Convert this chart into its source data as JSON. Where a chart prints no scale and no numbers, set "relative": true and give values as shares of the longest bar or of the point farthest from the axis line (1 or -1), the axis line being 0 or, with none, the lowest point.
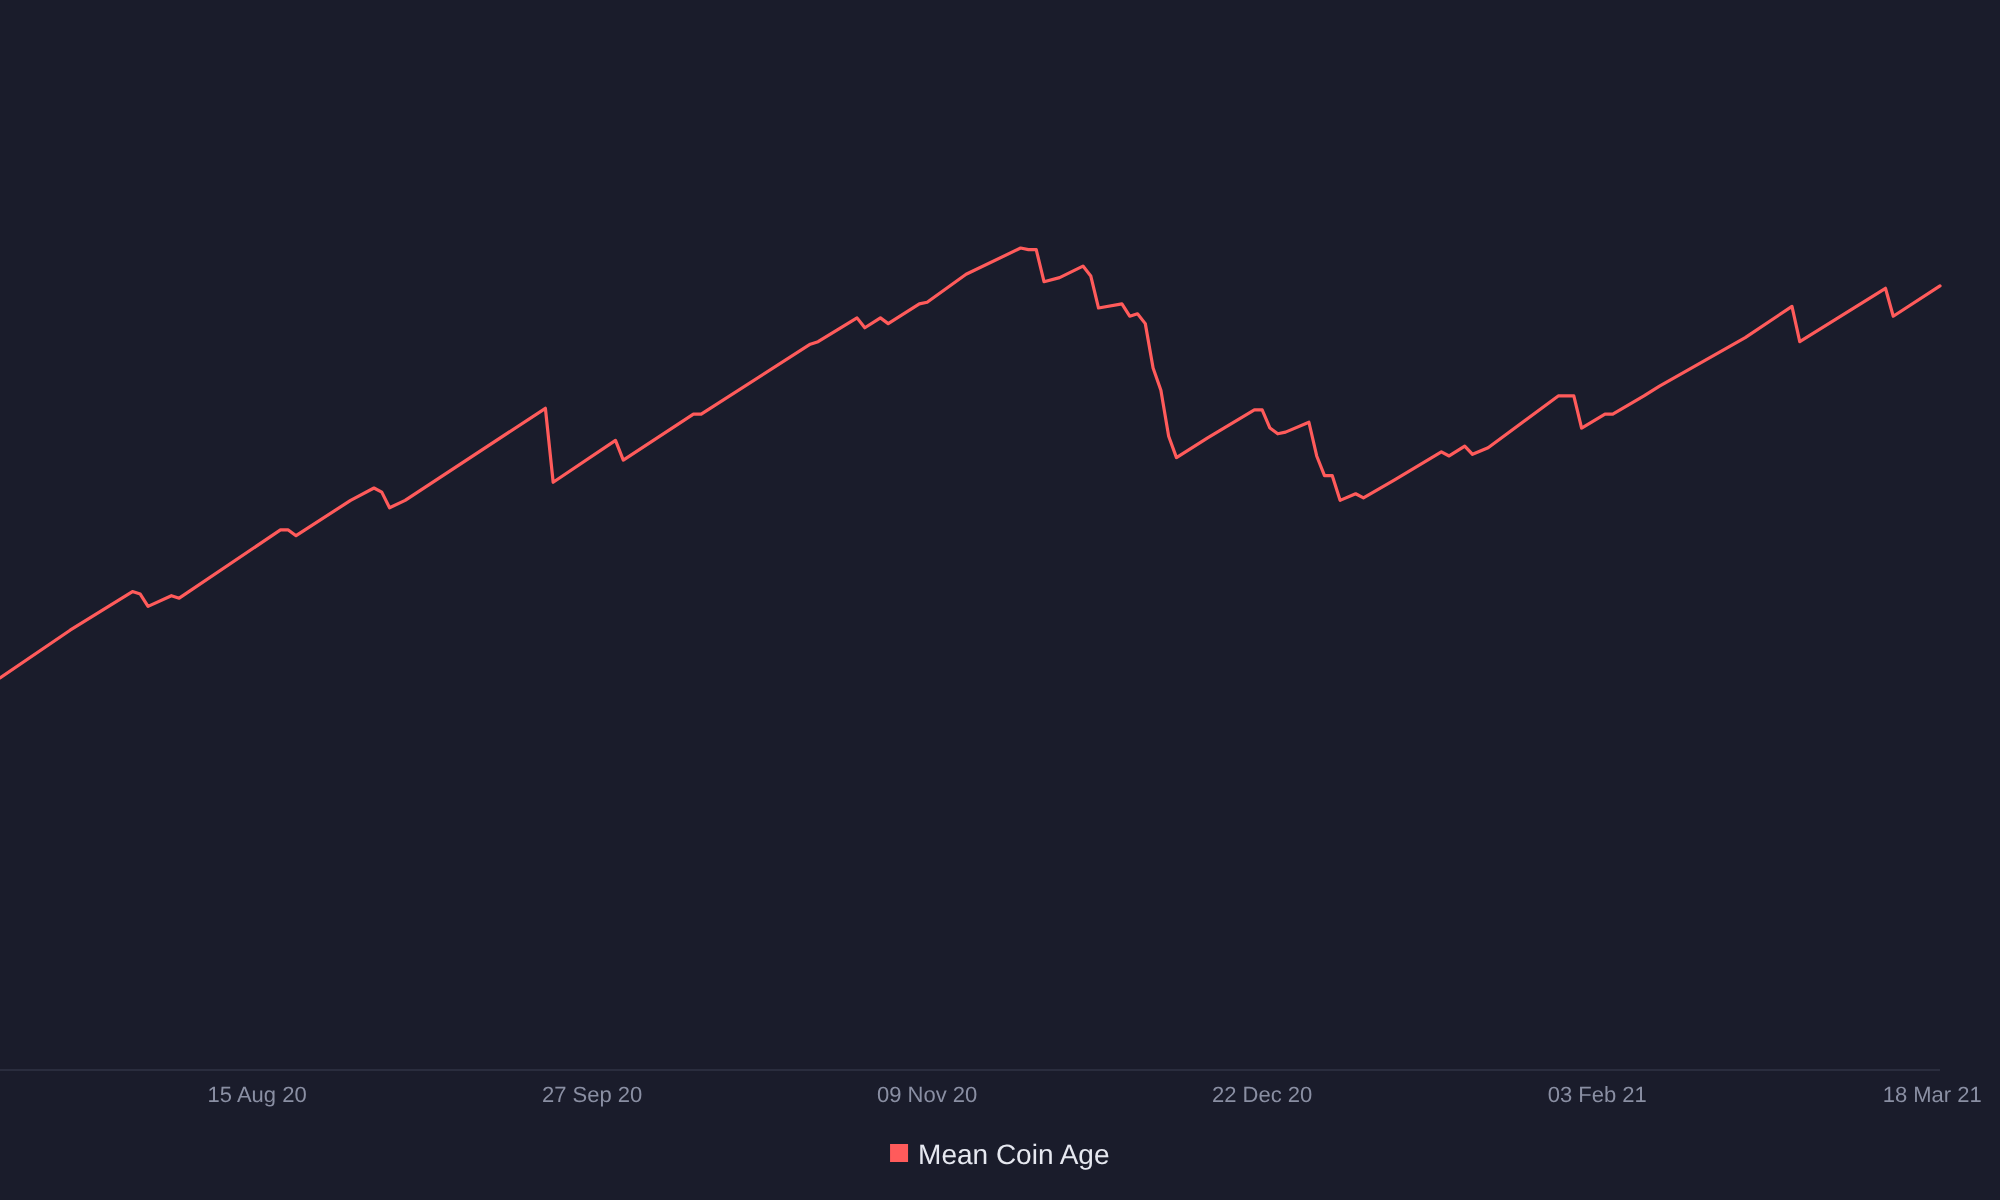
{
  "chart_data": {
    "type": "line",
    "relative": true,
    "legend": "bottom",
    "x": [
      "2020-07-13",
      "2020-07-22",
      "2020-07-30",
      "2020-07-31",
      "2020-08-01",
      "2020-08-04",
      "2020-08-05",
      "2020-08-18",
      "2020-08-19",
      "2020-08-20",
      "2020-08-27",
      "2020-08-30",
      "2020-08-31",
      "2020-09-01",
      "2020-09-03",
      "2020-09-21",
      "2020-09-22",
      "2020-09-30",
      "2020-10-01",
      "2020-10-10",
      "2020-10-11",
      "2020-10-25",
      "2020-10-26",
      "2020-10-31",
      "2020-11-01",
      "2020-11-03",
      "2020-11-04",
      "2020-11-08",
      "2020-11-09",
      "2020-11-14",
      "2020-11-21",
      "2020-11-22",
      "2020-11-23",
      "2020-11-24",
      "2020-11-26",
      "2020-11-29",
      "2020-11-30",
      "2020-12-01",
      "2020-12-04",
      "2020-12-05",
      "2020-12-06",
      "2020-12-07",
      "2020-12-08",
      "2020-12-09",
      "2020-12-10",
      "2020-12-11",
      "2020-12-15",
      "2020-12-21",
      "2020-12-22",
      "2020-12-23",
      "2020-12-24",
      "2020-12-25",
      "2020-12-28",
      "2020-12-29",
      "2020-12-30",
      "2020-12-31",
      "2021-01-01",
      "2021-01-03",
      "2021-01-04",
      "2021-01-08",
      "2021-01-14",
      "2021-01-15",
      "2021-01-17",
      "2021-01-18",
      "2021-01-20",
      "2021-01-29",
      "2021-01-31",
      "2021-02-01",
      "2021-02-04",
      "2021-02-05",
      "2021-02-09",
      "2021-02-11",
      "2021-02-22",
      "2021-02-28",
      "2021-03-01",
      "2021-03-12",
      "2021-03-13",
      "2021-03-19"
    ],
    "xlim": [
      "2020-07-13",
      "2021-03-19"
    ],
    "xticks": [
      {
        "value": "2020-08-15",
        "label": "15 Aug 20"
      },
      {
        "value": "2020-09-27",
        "label": "27 Sep 20"
      },
      {
        "value": "2020-11-09",
        "label": "09 Nov 20"
      },
      {
        "value": "2020-12-22",
        "label": "22 Dec 20"
      },
      {
        "value": "2021-02-03",
        "label": "03 Feb 21"
      },
      {
        "value": "2021-03-18",
        "label": "18 Mar 21"
      }
    ],
    "series": [
      {
        "name": "Mean Coin Age",
        "color": "#ff5b5b",
        "values": [
          0.477,
          0.535,
          0.582,
          0.579,
          0.564,
          0.577,
          0.574,
          0.657,
          0.657,
          0.65,
          0.693,
          0.708,
          0.703,
          0.684,
          0.693,
          0.805,
          0.715,
          0.766,
          0.742,
          0.798,
          0.798,
          0.883,
          0.886,
          0.915,
          0.903,
          0.915,
          0.908,
          0.932,
          0.934,
          0.968,
          1,
          0.998,
          0.998,
          0.959,
          0.964,
          0.978,
          0.966,
          0.927,
          0.932,
          0.917,
          0.92,
          0.908,
          0.854,
          0.827,
          0.771,
          0.745,
          0.769,
          0.803,
          0.803,
          0.781,
          0.774,
          0.776,
          0.788,
          0.747,
          0.723,
          0.723,
          0.693,
          0.701,
          0.696,
          0.718,
          0.752,
          0.747,
          0.759,
          0.749,
          0.757,
          0.82,
          0.82,
          0.781,
          0.798,
          0.798,
          0.82,
          0.832,
          0.891,
          0.929,
          0.886,
          0.951,
          0.917,
          0.954
        ]
      }
    ]
  }
}
